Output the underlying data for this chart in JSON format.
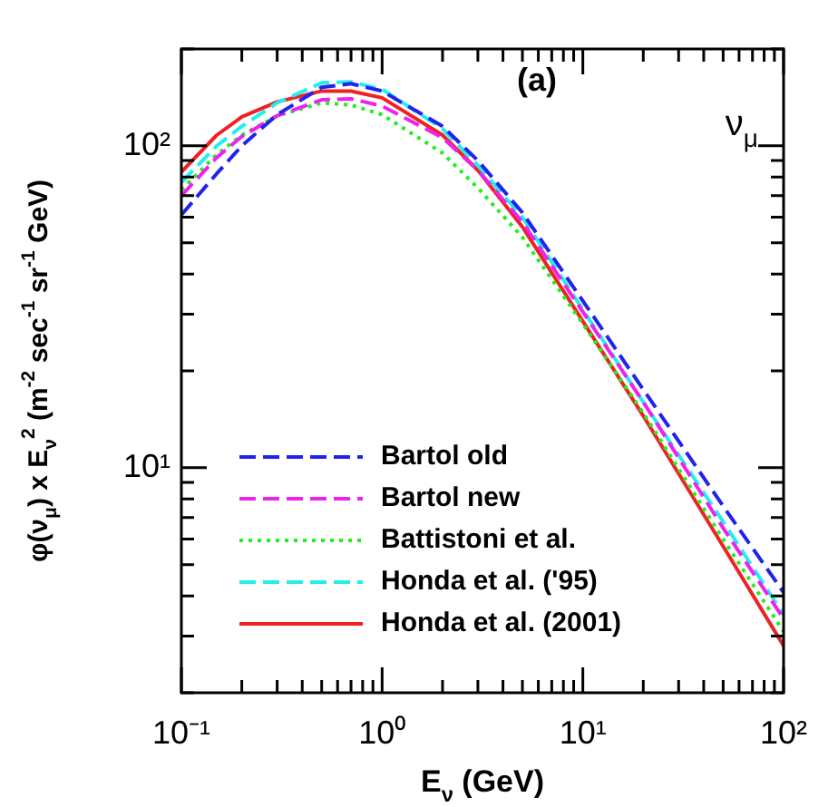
{
  "chart_data": {
    "type": "line",
    "xlabel": "E$_{ν}$ (GeV)",
    "ylabel": "φ(ν$_{μ}$) x E$_{ν}$$^{2}$ (m$^{-2}$ sec$^{-1}$ sr$^{-1}$ GeV)",
    "annotations": [
      "(a)",
      "ν$_{μ}$"
    ],
    "log": "xy",
    "grid": false,
    "legend": "bottom left",
    "marker": "none",
    "x": [
      0.1,
      0.15,
      0.2,
      0.3,
      0.5,
      0.7,
      1,
      2,
      3,
      5,
      10,
      20,
      50,
      100
    ],
    "xlim": [
      0.1,
      100
    ],
    "ylim": [
      2,
      200
    ],
    "xticks": [
      {
        "value": 0.1,
        "label": "10⁻¹"
      },
      {
        "value": 0.2,
        "label": null
      },
      {
        "value": 0.3,
        "label": null
      },
      {
        "value": 0.4,
        "label": null
      },
      {
        "value": 0.5,
        "label": null
      },
      {
        "value": 0.6,
        "label": null
      },
      {
        "value": 0.7,
        "label": null
      },
      {
        "value": 0.8,
        "label": null
      },
      {
        "value": 0.9,
        "label": null
      },
      {
        "value": 1,
        "label": "10⁰"
      },
      {
        "value": 2,
        "label": null
      },
      {
        "value": 3,
        "label": null
      },
      {
        "value": 4,
        "label": null
      },
      {
        "value": 5,
        "label": null
      },
      {
        "value": 6,
        "label": null
      },
      {
        "value": 7,
        "label": null
      },
      {
        "value": 8,
        "label": null
      },
      {
        "value": 9,
        "label": null
      },
      {
        "value": 10,
        "label": "10¹"
      },
      {
        "value": 20,
        "label": null
      },
      {
        "value": 30,
        "label": null
      },
      {
        "value": 40,
        "label": null
      },
      {
        "value": 50,
        "label": null
      },
      {
        "value": 60,
        "label": null
      },
      {
        "value": 70,
        "label": null
      },
      {
        "value": 80,
        "label": null
      },
      {
        "value": 90,
        "label": null
      },
      {
        "value": 100,
        "label": "10²"
      }
    ],
    "yticks": [
      {
        "value": 2,
        "label": null
      },
      {
        "value": 3,
        "label": null
      },
      {
        "value": 4,
        "label": null
      },
      {
        "value": 5,
        "label": null
      },
      {
        "value": 6,
        "label": null
      },
      {
        "value": 7,
        "label": null
      },
      {
        "value": 8,
        "label": null
      },
      {
        "value": 9,
        "label": null
      },
      {
        "value": 10,
        "label": "10¹"
      },
      {
        "value": 20,
        "label": null
      },
      {
        "value": 30,
        "label": null
      },
      {
        "value": 40,
        "label": null
      },
      {
        "value": 50,
        "label": null
      },
      {
        "value": 60,
        "label": null
      },
      {
        "value": 70,
        "label": null
      },
      {
        "value": 80,
        "label": null
      },
      {
        "value": 90,
        "label": null
      },
      {
        "value": 100,
        "label": "10²"
      },
      {
        "value": 200,
        "label": null
      }
    ],
    "series": [
      {
        "name": "Bartol old",
        "color": "#2222ee",
        "line_style": "dashed",
        "values": [
          61,
          82,
          100,
          125,
          152,
          156,
          148,
          115,
          90,
          62,
          33,
          17.5,
          7.6,
          4.1
        ]
      },
      {
        "name": "Bartol new",
        "color": "#ee22ee",
        "line_style": "dashed",
        "values": [
          70,
          92,
          107,
          124,
          139,
          140,
          133,
          106,
          84,
          58,
          30.5,
          16,
          6.5,
          3.4
        ]
      },
      {
        "name": "Battistoni et al.",
        "color": "#22ee22",
        "line_style": "dotted",
        "values": [
          73,
          94,
          108,
          124,
          136,
          134,
          125,
          95,
          74,
          52,
          28,
          14.8,
          6,
          3.1
        ]
      },
      {
        "name": "Honda et al. ('95)",
        "color": "#22eeee",
        "line_style": "dashed",
        "values": [
          77,
          100,
          115,
          136,
          157,
          158,
          150,
          113,
          87,
          60,
          31,
          16,
          6.8,
          3.5
        ]
      },
      {
        "name": "Honda et al. (2001)",
        "color": "#ee2222",
        "line_style": "solid",
        "values": [
          83,
          108,
          123,
          137,
          148,
          148,
          141,
          108,
          84,
          56,
          28.5,
          14.5,
          5.7,
          2.8
        ]
      }
    ]
  }
}
